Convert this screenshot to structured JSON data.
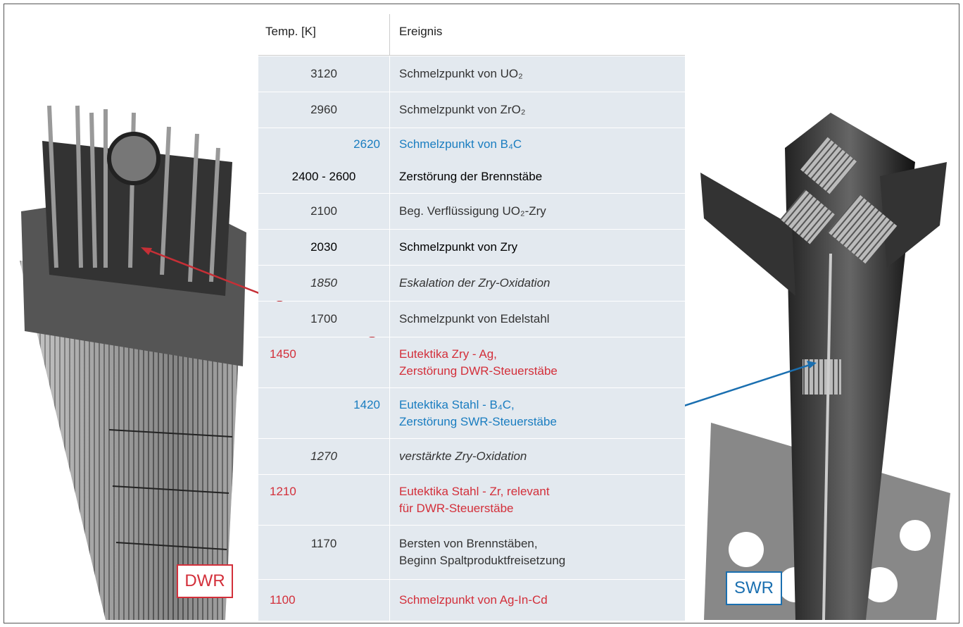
{
  "table": {
    "header": [
      "Temp. [K]",
      "Ereignis"
    ],
    "rows": [
      {
        "temp": "3120",
        "event": [
          "Schmelzpunkt von UO₂"
        ],
        "color": "#333333",
        "align": "center"
      },
      {
        "temp": "2960",
        "event": [
          "Schmelzpunkt von ZrO₂"
        ],
        "color": "#333333",
        "align": "center"
      },
      {
        "temp": "2620",
        "event": [
          "Schmelzpunkt von B₄C"
        ],
        "color": "#1a7dc0",
        "align": "right"
      },
      {
        "temp": "2400 - 2600",
        "event": [
          "Zerstörung der Brennstäbe"
        ],
        "color": "#000000",
        "align": "center"
      },
      {
        "temp": "2100",
        "event": [
          "Beg. Verflüssigung UO₂-Zry"
        ],
        "color": "#333333",
        "align": "center"
      },
      {
        "temp": "2030",
        "event": [
          "Schmelzpunkt von Zry"
        ],
        "color": "#000000",
        "align": "center"
      },
      {
        "temp": "1850",
        "event": [
          "Eskalation der Zry-Oxidation"
        ],
        "color": "#333333",
        "align": "center",
        "italic": true
      },
      {
        "temp": "1700",
        "event": [
          "Schmelzpunkt von Edelstahl"
        ],
        "color": "#333333",
        "align": "center"
      },
      {
        "temp": "1450",
        "event": [
          "Eutektika Zry - Ag,",
          "Zerstörung DWR-Steuerstäbe"
        ],
        "color": "#d32f3a",
        "align": "left"
      },
      {
        "temp": "1420",
        "event": [
          "Eutektika Stahl - B₄C,",
          "Zerstörung SWR-Steuerstäbe"
        ],
        "color": "#1a7dc0",
        "align": "right"
      },
      {
        "temp": "1270",
        "event": [
          "verstärkte Zry-Oxidation"
        ],
        "color": "#333333",
        "align": "center",
        "italic": true
      },
      {
        "temp": "1210",
        "event": [
          "Eutektika Stahl - Zr, relevant",
          "für DWR-Steuerstäbe"
        ],
        "color": "#d32f3a",
        "align": "left"
      },
      {
        "temp": "1170",
        "event": [
          "Bersten von Brennstäben,",
          "Beginn Spaltproduktfreisetzung"
        ],
        "color": "#333333",
        "align": "center"
      },
      {
        "temp": "1100",
        "event": [
          "Schmelzpunkt von Ag-In-Cd"
        ],
        "color": "#d32f3a",
        "align": "left"
      }
    ]
  },
  "labels": {
    "dwr": "DWR",
    "swr": "SWR"
  }
}
